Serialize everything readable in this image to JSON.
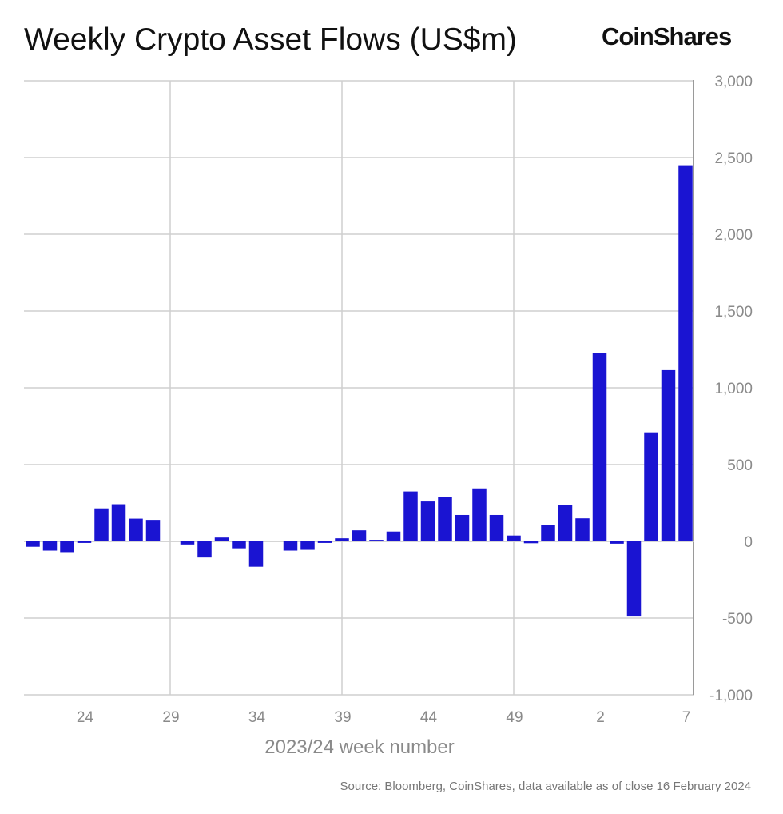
{
  "title": "Weekly Crypto Asset Flows (US$m)",
  "brand": "CoinShares",
  "source": "Source: Bloomberg, CoinShares, data available as of close 16 February 2024",
  "colors": {
    "bar": "#1a14d2",
    "grid": "#cfcfcf",
    "axis": "#9a9a9a",
    "tick_text": "#8a8a8a"
  },
  "chart_data": {
    "type": "bar",
    "xlabel": "2023/24 week number",
    "ylabel": "",
    "ylim": [
      -1000,
      3000
    ],
    "yticks": [
      -1000,
      -500,
      0,
      500,
      1000,
      1500,
      2000,
      2500,
      3000
    ],
    "ytick_labels": [
      "-1,000",
      "-500",
      "0",
      "500",
      "1,000",
      "1,500",
      "2,000",
      "2,500",
      "3,000"
    ],
    "y_axis_side": "right",
    "grid": true,
    "categories": [
      "21",
      "22",
      "23",
      "24",
      "25",
      "26",
      "27",
      "28",
      "29",
      "30",
      "31",
      "32",
      "33",
      "34",
      "35",
      "36",
      "37",
      "38",
      "39",
      "40",
      "41",
      "42",
      "43",
      "44",
      "45",
      "46",
      "47",
      "48",
      "49",
      "50",
      "51",
      "52",
      "1",
      "2",
      "3",
      "4",
      "5",
      "6",
      "7"
    ],
    "xtick_labels": [
      "24",
      "29",
      "34",
      "39",
      "44",
      "49",
      "2",
      "7"
    ],
    "values": [
      -35,
      -60,
      -70,
      -10,
      215,
      242,
      148,
      140,
      0,
      -20,
      -105,
      25,
      -45,
      -165,
      0,
      -60,
      -55,
      -10,
      20,
      72,
      10,
      64,
      325,
      260,
      290,
      172,
      345,
      172,
      38,
      -12,
      108,
      238,
      150,
      1225,
      -15,
      -490,
      710,
      1115,
      2450
    ]
  }
}
